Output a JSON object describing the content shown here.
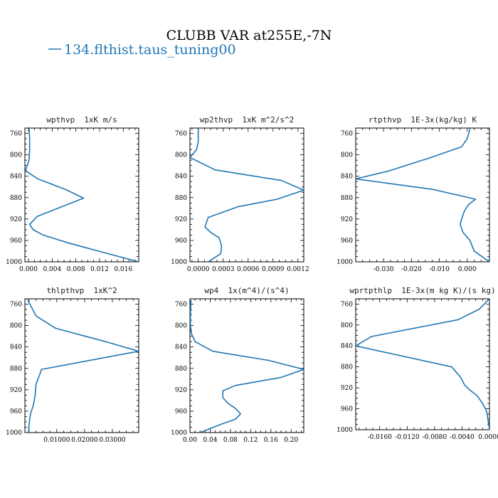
{
  "figure": {
    "title": "CLUBB VAR at255E,-7N",
    "legend_label": "134.flthist.taus_tuning00",
    "line_color": "#1f77b4"
  },
  "chart_data": [
    {
      "type": "line",
      "title": "wpthvp  1xK m/s",
      "xlim": [
        -0.0006,
        0.0186
      ],
      "ylim": [
        1000,
        750
      ],
      "xticks": [
        0.0,
        0.004,
        0.008,
        0.012,
        0.016
      ],
      "xtick_labels": [
        "0.000",
        "0.004",
        "0.008",
        "0.012",
        "0.016"
      ],
      "yticks": [
        760,
        800,
        840,
        880,
        920,
        960,
        1000
      ],
      "series": [
        {
          "x": [
            0.0001,
            0.0002,
            0.0002,
            0.0001,
            -0.0005,
            0.0016,
            0.0063,
            0.0093,
            0.0015,
            0.0002,
            0.0008,
            0.0025,
            0.0068,
            0.0135,
            0.0186
          ],
          "y": [
            751,
            770,
            790,
            810,
            830,
            845,
            865,
            881,
            915,
            930,
            940,
            950,
            965,
            985,
            1000
          ]
        }
      ]
    },
    {
      "type": "line",
      "title": "wp2thvp  1xK m^2/s^2",
      "xlim": [
        -0.0001,
        0.00127
      ],
      "ylim": [
        1000,
        750
      ],
      "xticks": [
        0.0,
        0.0003,
        0.0006,
        0.0009,
        0.0012
      ],
      "xtick_labels": [
        "0.0000",
        "0.0003",
        "0.0006",
        "0.0009",
        "0.0012"
      ],
      "yticks": [
        760,
        800,
        840,
        880,
        920,
        960,
        1000
      ],
      "series": [
        {
          "x": [
            0.0,
            0.0,
            -2e-05,
            -0.0001,
            0.0002,
            0.001,
            0.00127,
            0.00095,
            0.00048,
            0.00012,
            8e-05,
            0.00015,
            0.00025,
            0.00028,
            0.00027,
            0.00012
          ],
          "y": [
            751,
            775,
            790,
            805,
            828,
            848,
            866,
            883,
            897,
            917,
            935,
            945,
            955,
            970,
            985,
            1000
          ]
        }
      ]
    },
    {
      "type": "line",
      "title": "rtpthvp  1E-3x(kg/kg) K",
      "xlim": [
        -0.04,
        0.008
      ],
      "ylim": [
        1000,
        750
      ],
      "xticks": [
        -0.03,
        -0.02,
        -0.01,
        0.0
      ],
      "xtick_labels": [
        "-0.030",
        "-0.020",
        "-0.010",
        "0.000"
      ],
      "yticks": [
        760,
        800,
        840,
        880,
        920,
        960,
        1000
      ],
      "series": [
        {
          "x": [
            0.001,
            0.0,
            -0.002,
            -0.013,
            -0.028,
            -0.04,
            -0.012,
            0.003,
            0.0005,
            -0.001,
            -0.002,
            -0.0025,
            -0.0015,
            0.001,
            0.0025,
            0.008
          ],
          "y": [
            751,
            770,
            785,
            805,
            830,
            845,
            865,
            883,
            893,
            905,
            920,
            930,
            945,
            960,
            980,
            1000
          ]
        }
      ]
    },
    {
      "type": "line",
      "title": "thlpthvp  1xK^2",
      "xlim": [
        -0.0015,
        0.0395
      ],
      "ylim": [
        1000,
        750
      ],
      "xticks": [
        0.01,
        0.02,
        0.03
      ],
      "xtick_labels": [
        "0.01000",
        "0.02000",
        "0.03000"
      ],
      "yticks": [
        760,
        800,
        840,
        880,
        920,
        960,
        1000
      ],
      "series": [
        {
          "x": [
            -0.0005,
            0.0025,
            0.0095,
            0.0275,
            0.0395,
            0.0045,
            0.0025,
            0.0022,
            0.0015,
            0.0005,
            0.0,
            -0.0002
          ],
          "y": [
            752,
            782,
            805,
            830,
            848,
            882,
            910,
            930,
            950,
            965,
            985,
            1000
          ]
        }
      ]
    },
    {
      "type": "line",
      "title": "wp4  1x(m^4)/(s^4)",
      "xlim": [
        0.0,
        0.225
      ],
      "ylim": [
        1000,
        750
      ],
      "xticks": [
        0.0,
        0.04,
        0.08,
        0.12,
        0.16,
        0.2
      ],
      "xtick_labels": [
        "0.00",
        "0.04",
        "0.08",
        "0.12",
        "0.16",
        "0.20"
      ],
      "yticks": [
        760,
        800,
        840,
        880,
        920,
        960,
        1000
      ],
      "series": [
        {
          "x": [
            0.002,
            0.001,
            0.001,
            0.003,
            0.01,
            0.045,
            0.155,
            0.225,
            0.18,
            0.09,
            0.065,
            0.065,
            0.075,
            0.09,
            0.1,
            0.09,
            0.06,
            0.02
          ],
          "y": [
            752,
            780,
            800,
            815,
            830,
            848,
            865,
            882,
            897,
            912,
            922,
            935,
            945,
            955,
            965,
            975,
            985,
            1000
          ]
        }
      ]
    },
    {
      "type": "line",
      "title": "wprtpthlp  1E-3x(m kg K)/(s kg)",
      "xlim": [
        -0.0195,
        0.0
      ],
      "ylim": [
        1000,
        750
      ],
      "xticks": [
        -0.016,
        -0.012,
        -0.008,
        -0.004,
        0.0
      ],
      "xtick_labels": [
        "-0.0160",
        "-0.0120",
        "-0.0080",
        "-0.0040",
        "0.0000"
      ],
      "yticks": [
        760,
        800,
        840,
        880,
        920,
        960,
        1000
      ],
      "series": [
        {
          "x": [
            -0.0001,
            -0.0015,
            -0.0046,
            -0.0172,
            -0.0195,
            -0.0055,
            -0.0042,
            -0.0036,
            -0.0028,
            -0.0018,
            -0.001,
            -0.0004,
            0.0
          ],
          "y": [
            751,
            770,
            790,
            822,
            840,
            880,
            900,
            915,
            925,
            935,
            950,
            965,
            1000
          ]
        }
      ]
    }
  ]
}
